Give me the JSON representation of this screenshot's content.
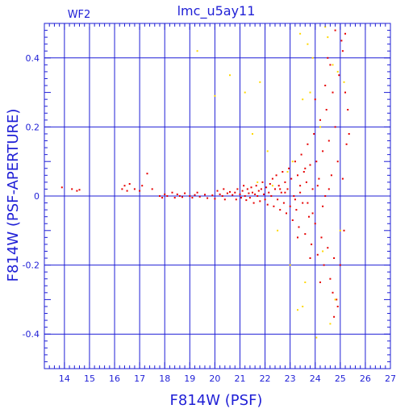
{
  "chart_data": {
    "type": "scatter",
    "title": "lmc_u5ay11",
    "subtitle": "WF2",
    "xlabel": "F814W (PSF)",
    "ylabel": "F814W (PSF-APERTURE)",
    "xlim": [
      13.2,
      27
    ],
    "ylim": [
      -0.5,
      0.5
    ],
    "xticks": [
      14,
      15,
      16,
      17,
      18,
      19,
      20,
      21,
      22,
      23,
      24,
      25,
      26,
      27
    ],
    "yticks": [
      -0.4,
      -0.2,
      0,
      0.2,
      0.4
    ],
    "ytick_labels": [
      "-0.4",
      "-0.2",
      "0",
      "0.2",
      "0.4"
    ],
    "grid": true,
    "colors": {
      "axis": "#1f1fd6",
      "primary": "#e60000",
      "secondary": "#ffd800"
    },
    "series": [
      {
        "color": "#e60000",
        "points": [
          [
            13.9,
            0.025
          ],
          [
            14.3,
            0.02
          ],
          [
            14.5,
            0.015
          ],
          [
            14.6,
            0.018
          ],
          [
            16.3,
            0.02
          ],
          [
            16.4,
            0.03
          ],
          [
            16.5,
            0.015
          ],
          [
            16.6,
            0.035
          ],
          [
            16.8,
            0.02
          ],
          [
            17.0,
            0.015
          ],
          [
            17.1,
            0.03
          ],
          [
            17.3,
            0.065
          ],
          [
            17.5,
            0.02
          ],
          [
            17.8,
            0.0
          ],
          [
            17.9,
            -0.005
          ],
          [
            18.0,
            0.005
          ],
          [
            18.1,
            0.0
          ],
          [
            18.3,
            0.01
          ],
          [
            18.4,
            -0.005
          ],
          [
            18.5,
            0.005
          ],
          [
            18.6,
            0.0
          ],
          [
            18.7,
            -0.003
          ],
          [
            18.8,
            0.008
          ],
          [
            19.0,
            0.0
          ],
          [
            19.1,
            -0.005
          ],
          [
            19.2,
            0.003
          ],
          [
            19.3,
            0.01
          ],
          [
            19.4,
            -0.002
          ],
          [
            19.6,
            0.004
          ],
          [
            19.7,
            -0.006
          ],
          [
            19.9,
            0.002
          ],
          [
            20.0,
            -0.008
          ],
          [
            20.1,
            0.015
          ],
          [
            20.2,
            0.005
          ],
          [
            20.3,
            0.0
          ],
          [
            20.35,
            0.02
          ],
          [
            20.4,
            -0.01
          ],
          [
            20.5,
            0.008
          ],
          [
            20.6,
            0.012
          ],
          [
            20.7,
            0.003
          ],
          [
            20.8,
            0.01
          ],
          [
            20.85,
            -0.01
          ],
          [
            20.9,
            0.02
          ],
          [
            21.0,
            0.005
          ],
          [
            21.05,
            -0.005
          ],
          [
            21.1,
            0.015
          ],
          [
            21.15,
            0.03
          ],
          [
            21.2,
            0.0
          ],
          [
            21.25,
            -0.012
          ],
          [
            21.3,
            0.02
          ],
          [
            21.35,
            0.008
          ],
          [
            21.4,
            -0.005
          ],
          [
            21.45,
            0.025
          ],
          [
            21.5,
            0.01
          ],
          [
            21.55,
            -0.02
          ],
          [
            21.6,
            0.005
          ],
          [
            21.65,
            0.03
          ],
          [
            21.7,
            0.0
          ],
          [
            21.75,
            0.015
          ],
          [
            21.8,
            -0.015
          ],
          [
            21.85,
            0.02
          ],
          [
            21.9,
            0.04
          ],
          [
            21.95,
            0.005
          ],
          [
            22.0,
            -0.01
          ],
          [
            22.05,
            0.025
          ],
          [
            22.1,
            -0.025
          ],
          [
            22.15,
            0.01
          ],
          [
            22.2,
            0.035
          ],
          [
            22.25,
            0.0
          ],
          [
            22.3,
            0.05
          ],
          [
            22.35,
            -0.03
          ],
          [
            22.4,
            0.02
          ],
          [
            22.45,
            0.06
          ],
          [
            22.5,
            -0.01
          ],
          [
            22.55,
            0.03
          ],
          [
            22.6,
            -0.04
          ],
          [
            22.65,
            0.01
          ],
          [
            22.7,
            0.07
          ],
          [
            22.75,
            -0.02
          ],
          [
            22.8,
            0.04
          ],
          [
            22.85,
            -0.05
          ],
          [
            22.9,
            0.02
          ],
          [
            22.95,
            0.08
          ],
          [
            23.0,
            -0.03
          ],
          [
            23.05,
            0.05
          ],
          [
            23.1,
            -0.07
          ],
          [
            23.15,
            0.0
          ],
          [
            23.2,
            0.1
          ],
          [
            23.25,
            -0.04
          ],
          [
            23.3,
            0.06
          ],
          [
            23.35,
            -0.09
          ],
          [
            23.4,
            0.03
          ],
          [
            23.45,
            0.12
          ],
          [
            23.5,
            -0.02
          ],
          [
            23.55,
            0.07
          ],
          [
            23.6,
            -0.11
          ],
          [
            23.65,
            0.04
          ],
          [
            23.7,
            0.15
          ],
          [
            23.75,
            -0.06
          ],
          [
            23.8,
            0.09
          ],
          [
            23.85,
            -0.14
          ],
          [
            23.9,
            0.02
          ],
          [
            23.95,
            0.18
          ],
          [
            24.0,
            -0.08
          ],
          [
            24.05,
            0.1
          ],
          [
            24.1,
            -0.17
          ],
          [
            24.15,
            0.05
          ],
          [
            24.2,
            0.22
          ],
          [
            24.25,
            -0.12
          ],
          [
            24.3,
            0.13
          ],
          [
            24.35,
            -0.2
          ],
          [
            24.4,
            0.0
          ],
          [
            24.45,
            0.25
          ],
          [
            24.5,
            -0.15
          ],
          [
            24.55,
            0.16
          ],
          [
            24.6,
            -0.24
          ],
          [
            24.65,
            0.06
          ],
          [
            24.7,
            0.3
          ],
          [
            24.75,
            -0.18
          ],
          [
            24.8,
            0.2
          ],
          [
            24.85,
            -0.3
          ],
          [
            24.9,
            0.1
          ],
          [
            24.95,
            0.35
          ],
          [
            25.0,
            -0.2
          ],
          [
            25.1,
            0.42
          ],
          [
            25.15,
            -0.1
          ],
          [
            25.2,
            0.3
          ],
          [
            25.25,
            0.15
          ],
          [
            25.3,
            0.25
          ],
          [
            25.35,
            0.18
          ],
          [
            25.05,
            0.45
          ],
          [
            24.9,
            -0.32
          ],
          [
            24.7,
            -0.28
          ],
          [
            24.5,
            0.4
          ],
          [
            24.8,
            0.48
          ],
          [
            25.2,
            0.47
          ],
          [
            24.6,
            0.38
          ],
          [
            24.0,
            0.28
          ],
          [
            23.9,
            -0.05
          ],
          [
            23.6,
            0.08
          ],
          [
            23.3,
            -0.12
          ],
          [
            23.8,
            -0.18
          ],
          [
            24.2,
            -0.25
          ],
          [
            24.4,
            0.32
          ],
          [
            24.75,
            -0.35
          ],
          [
            25.1,
            0.05
          ],
          [
            23.4,
            0.01
          ],
          [
            23.7,
            -0.02
          ],
          [
            24.1,
            0.03
          ],
          [
            23.2,
            -0.01
          ],
          [
            22.8,
            0.01
          ],
          [
            22.6,
            0.02
          ],
          [
            24.3,
            -0.03
          ],
          [
            24.55,
            0.02
          ]
        ]
      },
      {
        "color": "#ffd800",
        "points": [
          [
            19.3,
            0.42
          ],
          [
            20.0,
            0.29
          ],
          [
            20.6,
            0.35
          ],
          [
            21.2,
            0.3
          ],
          [
            21.8,
            0.33
          ],
          [
            22.1,
            0.13
          ],
          [
            23.4,
            0.47
          ],
          [
            23.5,
            0.28
          ],
          [
            23.7,
            0.44
          ],
          [
            23.9,
            0.4
          ],
          [
            24.4,
            0.49
          ],
          [
            24.5,
            0.46
          ],
          [
            24.7,
            0.38
          ],
          [
            24.9,
            0.36
          ],
          [
            23.3,
            -0.33
          ],
          [
            23.5,
            -0.32
          ],
          [
            23.6,
            -0.25
          ],
          [
            24.6,
            -0.37
          ],
          [
            24.8,
            -0.3
          ],
          [
            25.0,
            -0.1
          ],
          [
            23.1,
            0.1
          ],
          [
            23.0,
            -0.2
          ],
          [
            22.5,
            -0.1
          ],
          [
            24.2,
            0.2
          ],
          [
            23.8,
            0.3
          ],
          [
            21.5,
            0.18
          ],
          [
            22.9,
            0.07
          ],
          [
            24.05,
            -0.41
          ],
          [
            24.3,
            -0.16
          ],
          [
            25.15,
            0.33
          ],
          [
            22.3,
            0.03
          ],
          [
            21.7,
            0.04
          ]
        ]
      }
    ]
  }
}
